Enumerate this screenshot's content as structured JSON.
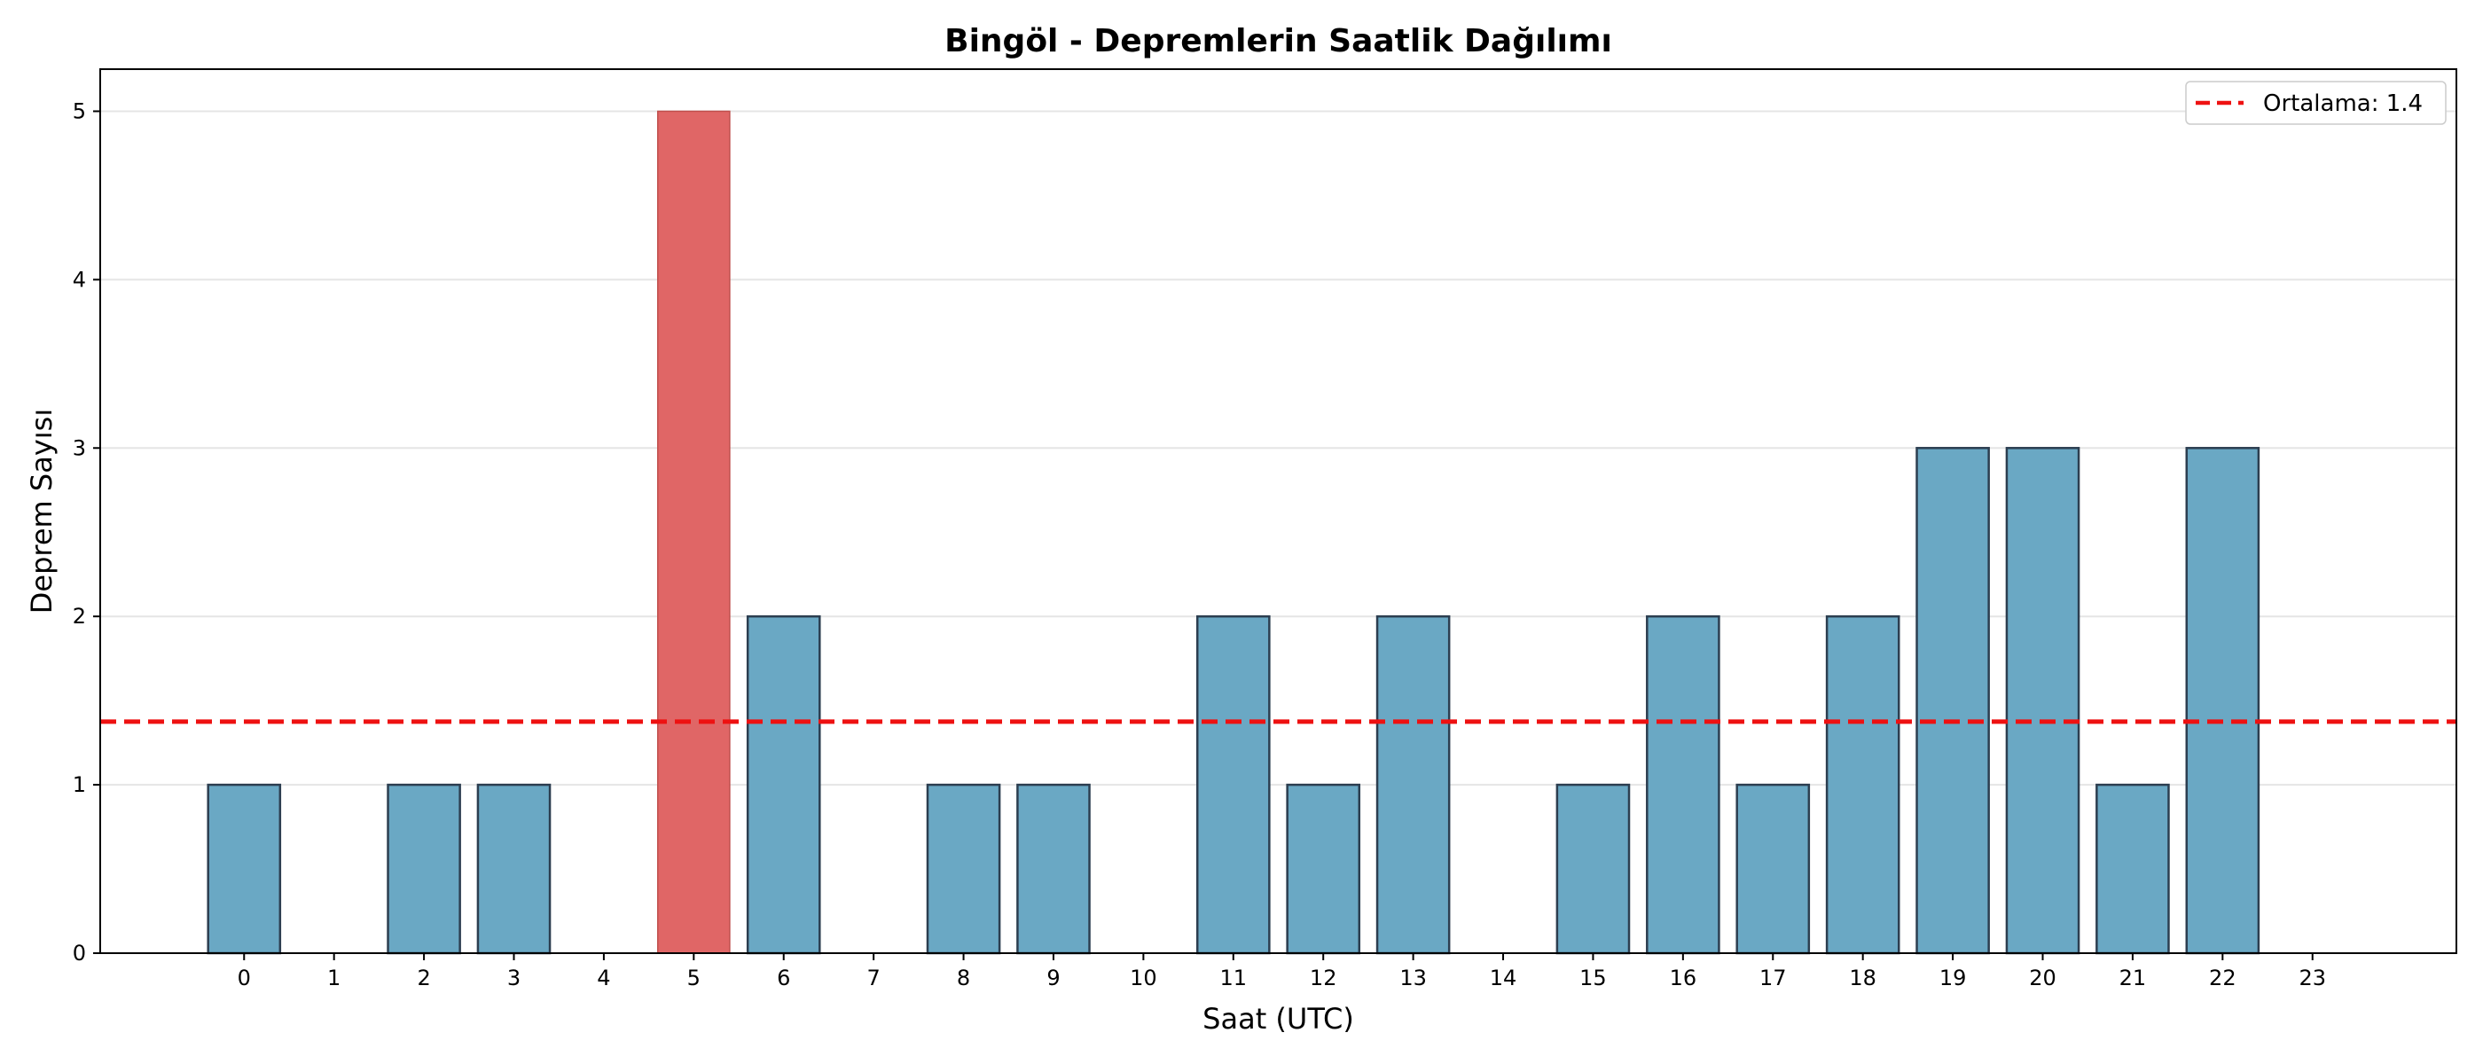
{
  "chart_data": {
    "type": "bar",
    "title": "Bingöl - Depremlerin Saatlik Dağılımı",
    "xlabel": "Saat (UTC)",
    "ylabel": "Deprem Sayısı",
    "categories": [
      "0",
      "1",
      "2",
      "3",
      "4",
      "5",
      "6",
      "7",
      "8",
      "9",
      "10",
      "11",
      "12",
      "13",
      "14",
      "15",
      "16",
      "17",
      "18",
      "19",
      "20",
      "21",
      "22",
      "23"
    ],
    "values": [
      1,
      0,
      1,
      1,
      0,
      5,
      2,
      0,
      1,
      1,
      0,
      2,
      1,
      2,
      0,
      1,
      2,
      1,
      2,
      3,
      3,
      1,
      3,
      0
    ],
    "highlight_index": 5,
    "xlim": [
      -1.6,
      24.6
    ],
    "ylim": [
      0,
      5.25
    ],
    "yticks": [
      0,
      1,
      2,
      3,
      4,
      5
    ],
    "grid": "horizontal",
    "reference_line": {
      "value": 1.375,
      "label": "Ortalama: 1.4",
      "style": "dashed"
    },
    "legend": {
      "placement": "top-right",
      "entries": [
        "Ortalama: 1.4"
      ]
    },
    "colors": {
      "bar": "#6aa8c4",
      "bar_highlight": "#e06666",
      "bar_edge": "#2c3e50",
      "mean_line": "#ee1111",
      "grid": "#e5e5e5"
    }
  }
}
